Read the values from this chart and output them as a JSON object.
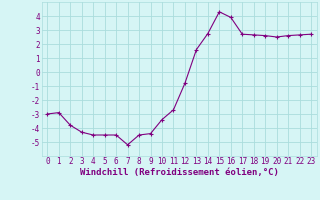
{
  "x": [
    0,
    1,
    2,
    3,
    4,
    5,
    6,
    7,
    8,
    9,
    10,
    11,
    12,
    13,
    14,
    15,
    16,
    17,
    18,
    19,
    20,
    21,
    22,
    23
  ],
  "y": [
    -3.0,
    -2.9,
    -3.8,
    -4.3,
    -4.5,
    -4.5,
    -4.5,
    -5.2,
    -4.5,
    -4.4,
    -3.4,
    -2.7,
    -0.8,
    1.6,
    2.75,
    4.3,
    3.9,
    2.7,
    2.65,
    2.6,
    2.5,
    2.6,
    2.65,
    2.7
  ],
  "xlim": [
    -0.5,
    23.5
  ],
  "ylim": [
    -6,
    5
  ],
  "yticks": [
    -5,
    -4,
    -3,
    -2,
    -1,
    0,
    1,
    2,
    3,
    4
  ],
  "xticks": [
    0,
    1,
    2,
    3,
    4,
    5,
    6,
    7,
    8,
    9,
    10,
    11,
    12,
    13,
    14,
    15,
    16,
    17,
    18,
    19,
    20,
    21,
    22,
    23
  ],
  "xlabel": "Windchill (Refroidissement éolien,°C)",
  "line_color": "#800080",
  "marker": "+",
  "bg_color": "#d6f5f5",
  "grid_color": "#aadddd",
  "xlabel_color": "#800080",
  "tick_color": "#800080",
  "tick_fontsize": 5.5,
  "xlabel_fontsize": 6.5
}
